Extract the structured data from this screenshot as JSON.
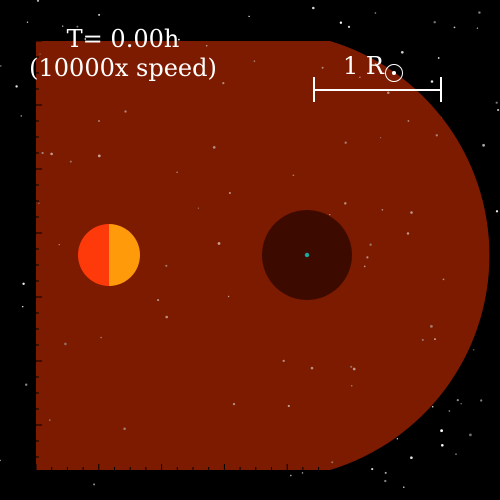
{
  "overlay": {
    "time_text": "T= 0.00h",
    "speed_text": "(10000x speed)",
    "scale_text": "1 R"
  },
  "icons": {
    "solar_radius_symbol": "sun-symbol-icon"
  },
  "colors": {
    "background": "#000000",
    "envelope": "#7d1b00",
    "core": "#3d0a00",
    "core_center": "#1aa7a0",
    "companion_left": "#ff3a0a",
    "companion_right": "#ff9a0a",
    "scale_bar": "#ffffff",
    "ticks": "#000000"
  }
}
